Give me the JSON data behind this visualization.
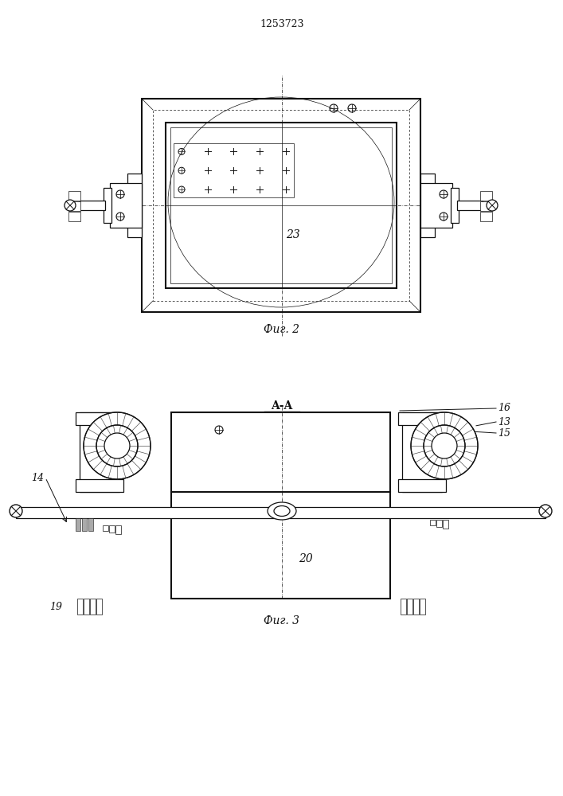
{
  "title": "1253723",
  "fig2_label": "Фиг. 2",
  "fig3_label": "Фиг. 3",
  "section_label": "A-A",
  "label_23": "23",
  "label_14": "14",
  "label_19": "19",
  "label_20": "20",
  "label_13": "13",
  "label_15": "15",
  "label_16": "16",
  "bg_color": "#ffffff",
  "line_color": "#111111"
}
